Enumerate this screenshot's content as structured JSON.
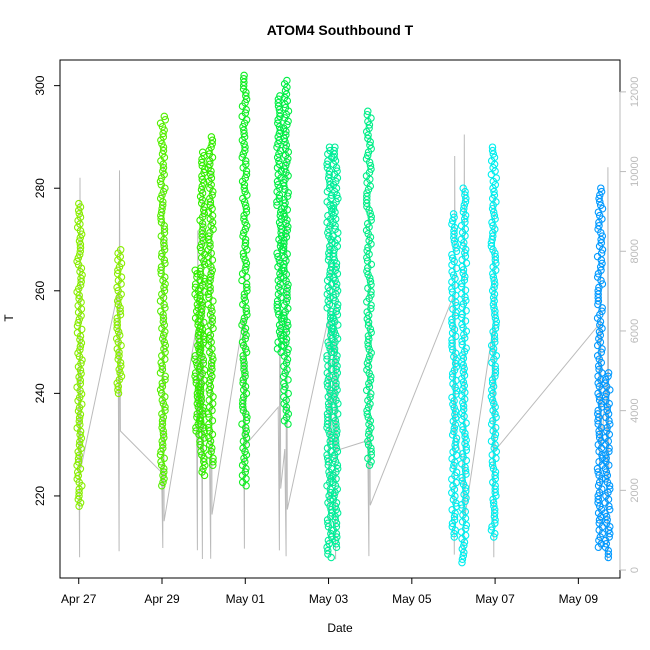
{
  "chart_data": {
    "type": "scatter",
    "title": "ATOM4 Southbound T",
    "xlabel": "Date",
    "ylabel": "T",
    "x_ticks": [
      "Apr 27",
      "Apr 29",
      "May 01",
      "May 03",
      "May 05",
      "May 07",
      "May 09"
    ],
    "x_tick_days": [
      0,
      2,
      4,
      6,
      8,
      10,
      12
    ],
    "x_range_days": [
      -0.45,
      13.0
    ],
    "y_ticks": [
      220,
      240,
      260,
      280,
      300
    ],
    "ylim": [
      204,
      305
    ],
    "y2_ticks": [
      0,
      2000,
      4000,
      6000,
      8000,
      10000,
      12000
    ],
    "y2lim": [
      -200,
      12800
    ],
    "grid": false,
    "legend": "none",
    "colors": {
      "secondary_line": "#bbbbbb",
      "axis": "#000000",
      "right_axis": "#bbbbbb"
    },
    "series": [
      {
        "day": 0.02,
        "ymin": 218,
        "ymax": 277,
        "color": "#88ee00"
      },
      {
        "day": 0.97,
        "ymin": 240,
        "ymax": 268,
        "color": "#88ee00"
      },
      {
        "day": 2.02,
        "ymin": 222,
        "ymax": 294,
        "color": "#55ee00"
      },
      {
        "day": 2.85,
        "ymin": 232,
        "ymax": 264,
        "color": "#33ee00"
      },
      {
        "day": 2.97,
        "ymin": 224,
        "ymax": 287,
        "color": "#33ee00"
      },
      {
        "day": 3.17,
        "ymin": 226,
        "ymax": 290,
        "color": "#33ee00"
      },
      {
        "day": 3.98,
        "ymin": 222,
        "ymax": 302,
        "color": "#11ee22"
      },
      {
        "day": 4.82,
        "ymin": 248,
        "ymax": 298,
        "color": "#00ee44"
      },
      {
        "day": 4.98,
        "ymin": 234,
        "ymax": 301,
        "color": "#00ee44"
      },
      {
        "day": 6.02,
        "ymin": 208,
        "ymax": 288,
        "color": "#00ee99"
      },
      {
        "day": 6.17,
        "ymin": 210,
        "ymax": 288,
        "color": "#00ee99"
      },
      {
        "day": 6.97,
        "ymin": 226,
        "ymax": 295,
        "color": "#00ee88"
      },
      {
        "day": 9.02,
        "ymin": 212,
        "ymax": 275,
        "color": "#00eeee"
      },
      {
        "day": 9.25,
        "ymin": 207,
        "ymax": 280,
        "color": "#00eeee"
      },
      {
        "day": 9.97,
        "ymin": 212,
        "ymax": 288,
        "color": "#00eeee"
      },
      {
        "day": 12.52,
        "ymin": 210,
        "ymax": 280,
        "color": "#0099ff"
      },
      {
        "day": 12.7,
        "ymin": 208,
        "ymax": 244,
        "color": "#0099ff"
      }
    ]
  }
}
